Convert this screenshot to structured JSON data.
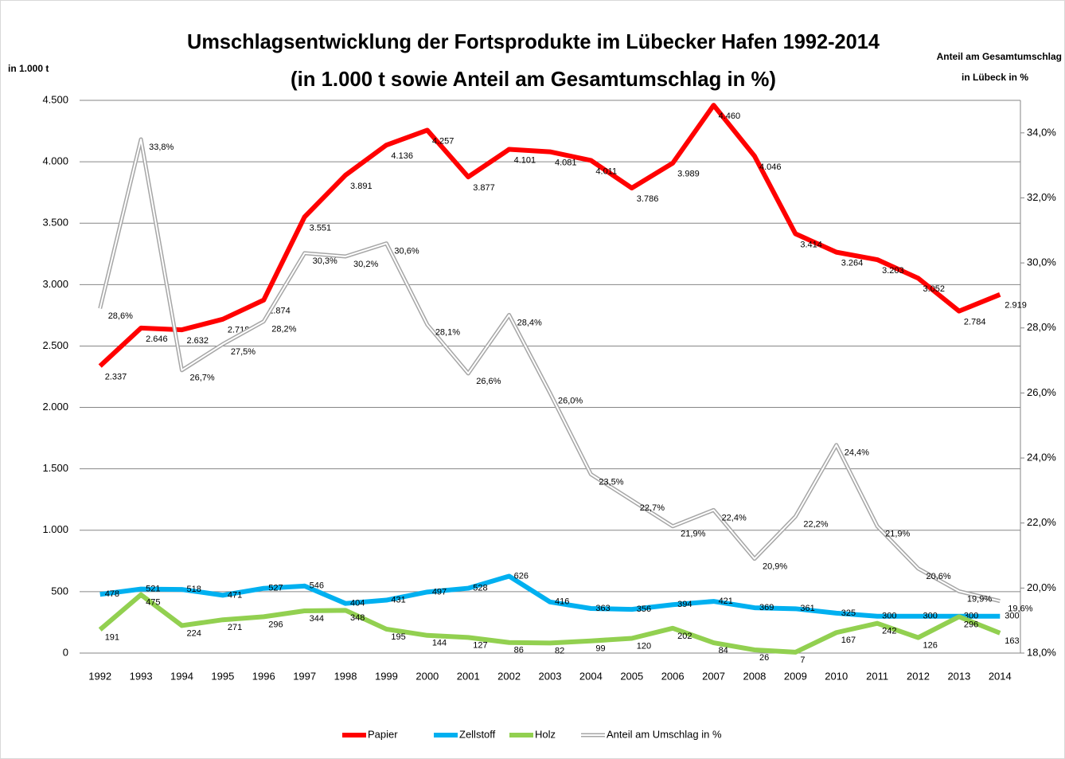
{
  "chart_data": {
    "type": "line",
    "title": [
      "Umschlagsentwicklung der Fortsprodukte im Lübecker Hafen 1992-2014",
      "(in 1.000 t  sowie Anteil am Gesamtumschlag in %)"
    ],
    "ylabel": "in 1.000 t",
    "y2label": [
      "Anteil am Gesamtumschlag",
      "in Lübeck in %"
    ],
    "categories": [
      "1992",
      "1993",
      "1994",
      "1995",
      "1996",
      "1997",
      "1998",
      "1999",
      "2000",
      "2001",
      "2002",
      "2003",
      "2004",
      "2005",
      "2006",
      "2007",
      "2008",
      "2009",
      "2010",
      "2011",
      "2012",
      "2013",
      "2014"
    ],
    "ylim": [
      0,
      4500
    ],
    "yticks": [
      0,
      500,
      {
        "value": 1000,
        "label": "1.000"
      },
      {
        "value": 1500,
        "label": "1.500"
      },
      {
        "value": 2000,
        "label": "2.000"
      },
      {
        "value": 2500,
        "label": "2.500"
      },
      {
        "value": 3000,
        "label": "3.000"
      },
      {
        "value": 3500,
        "label": "3.500"
      },
      {
        "value": 4000,
        "label": "4.000"
      },
      {
        "value": 4500,
        "label": "4.500"
      }
    ],
    "y2lim": [
      18,
      35
    ],
    "y2ticks": [
      {
        "value": 18,
        "label": "18,0%"
      },
      {
        "value": 20,
        "label": "20,0%"
      },
      {
        "value": 22,
        "label": "22,0%"
      },
      {
        "value": 24,
        "label": "24,0%"
      },
      {
        "value": 26,
        "label": "26,0%"
      },
      {
        "value": 28,
        "label": "28,0%"
      },
      {
        "value": 30,
        "label": "30,0%"
      },
      {
        "value": 32,
        "label": "32,0%"
      },
      {
        "value": 34,
        "label": "34,0%"
      }
    ],
    "grid": true,
    "legend": "bottom",
    "series": [
      {
        "name": "Papier",
        "color": "#ff0000",
        "values": [
          2337,
          2646,
          2632,
          2718,
          2874,
          3551,
          3891,
          4136,
          4257,
          3877,
          4101,
          4081,
          4011,
          3786,
          3989,
          4460,
          4046,
          3414,
          3264,
          3203,
          3052,
          2784,
          2919
        ],
        "value_labels": [
          "2.337",
          "2.646",
          "2.632",
          "2.718",
          "2.874",
          "3.551",
          "3.891",
          "4.136",
          "4.257",
          "3.877",
          "4.101",
          "4.081",
          "4.011",
          "3.786",
          "3.989",
          "4.460",
          "4.046",
          "3.414",
          "3.264",
          "3.203",
          "3.052",
          "2.784",
          "2.919"
        ]
      },
      {
        "name": "Zellstoff",
        "color": "#00b0f0",
        "values": [
          478,
          521,
          518,
          471,
          527,
          546,
          404,
          431,
          497,
          528,
          626,
          416,
          363,
          356,
          394,
          421,
          369,
          361,
          325,
          300,
          300,
          300,
          300
        ]
      },
      {
        "name": "Holz",
        "color": "#92d050",
        "values": [
          191,
          475,
          224,
          271,
          296,
          344,
          348,
          195,
          144,
          127,
          86,
          82,
          99,
          120,
          202,
          84,
          26,
          7,
          167,
          242,
          126,
          296,
          163
        ]
      },
      {
        "name": "Anteil am Umschlag in %",
        "color": "#a6a6a6",
        "axis": "y2",
        "values": [
          28.6,
          33.8,
          26.7,
          27.5,
          28.2,
          30.3,
          30.2,
          30.6,
          28.1,
          26.6,
          28.4,
          26.0,
          23.5,
          22.7,
          21.9,
          22.4,
          20.9,
          22.2,
          24.4,
          21.9,
          20.6,
          19.9,
          19.6
        ],
        "value_labels": [
          "28,6%",
          "33,8%",
          "26,7%",
          "27,5%",
          "28,2%",
          "30,3%",
          "30,2%",
          "30,6%",
          "28,1%",
          "26,6%",
          "28,4%",
          "26,0%",
          "23,5%",
          "22,7%",
          "21,9%",
          "22,4%",
          "20,9%",
          "22,2%",
          "24,4%",
          "21,9%",
          "20,6%",
          "19,9%",
          "19,6%"
        ]
      }
    ]
  }
}
